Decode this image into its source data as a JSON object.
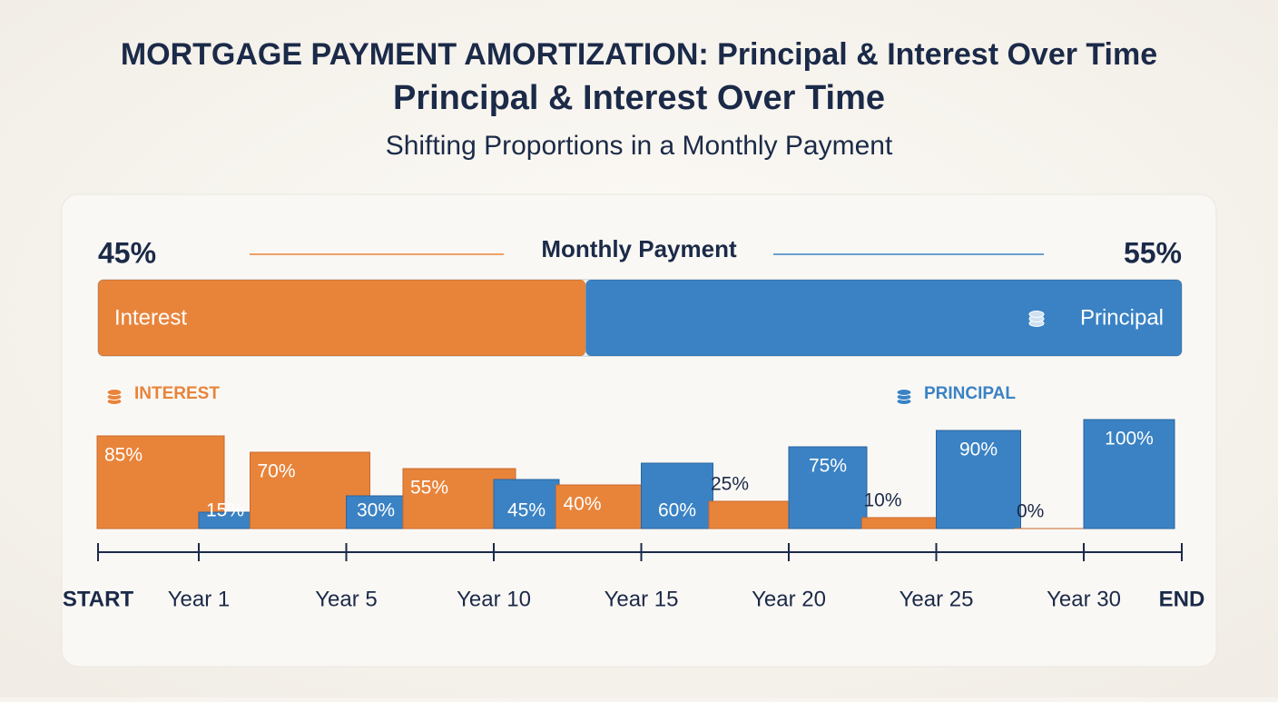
{
  "header": {
    "title": "MORTGAGE PAYMENT AMORTIZATION: Principal & Interest Over Time",
    "title2": "Principal & Interest Over Time",
    "subtitle": "Shifting Proportions in a Monthly Payment"
  },
  "chart_data": [
    {
      "type": "stacked-bar",
      "title": "Monthly Payment",
      "xlim": [
        0,
        100
      ],
      "series": [
        {
          "name": "Interest",
          "color": "#e8843a",
          "values": [
            45
          ],
          "value_labels": [
            "45%"
          ]
        },
        {
          "name": "Principal",
          "color": "#3a82c4",
          "values": [
            55
          ],
          "value_labels": [
            "55%"
          ]
        }
      ]
    },
    {
      "type": "grouped-bar",
      "ylim": [
        0,
        100
      ],
      "x_start_label": "START",
      "x_end_label": "END",
      "categories": [
        "Year 1",
        "Year 5",
        "Year 10",
        "Year 15",
        "Year 20",
        "Year 25",
        "Year 30"
      ],
      "series": [
        {
          "name": "INTEREST",
          "color": "#e8843a",
          "values": [
            85,
            70,
            55,
            40,
            25,
            10,
            0
          ],
          "value_labels": [
            "85%",
            "70%",
            "55%",
            "40%",
            "25%",
            "10%",
            "0%"
          ]
        },
        {
          "name": "PRINCIPAL",
          "color": "#3a82c4",
          "values": [
            15,
            30,
            45,
            60,
            75,
            90,
            100
          ],
          "value_labels": [
            "15%",
            "30%",
            "45%",
            "60%",
            "75%",
            "90%",
            "100%"
          ]
        }
      ]
    }
  ]
}
